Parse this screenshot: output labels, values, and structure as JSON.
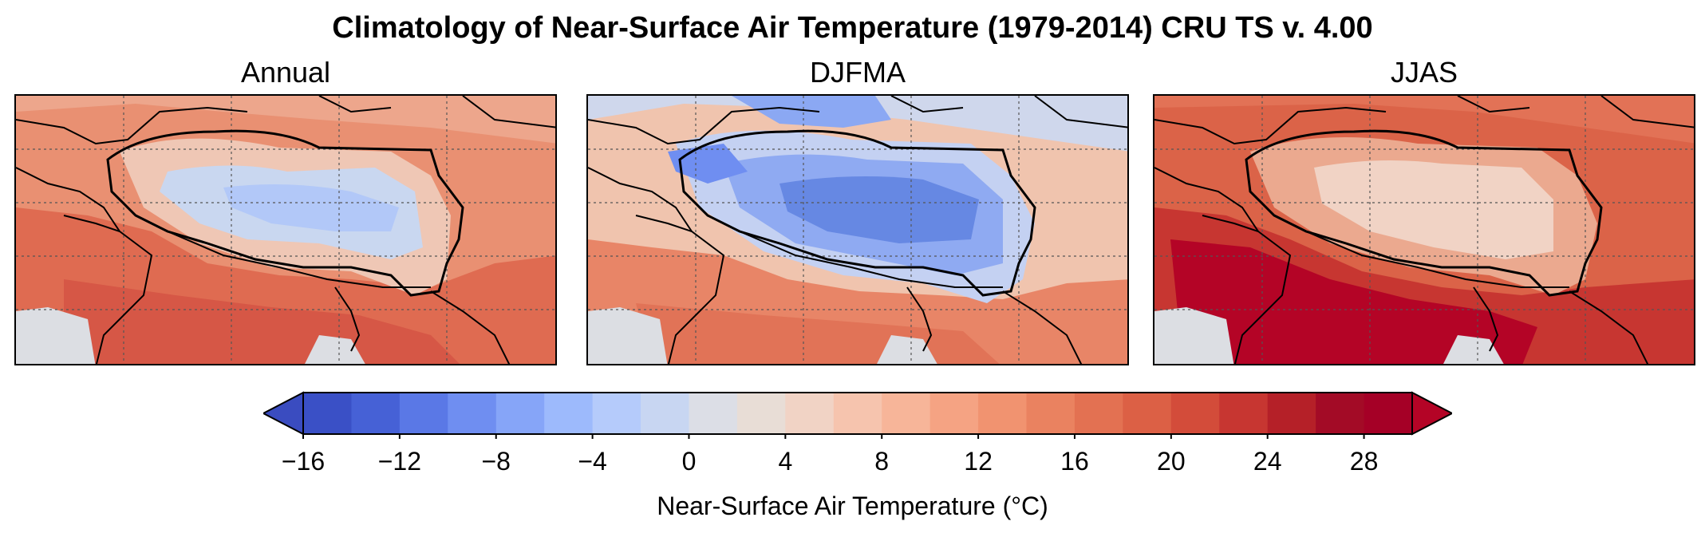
{
  "title": "Climatology of Near-Surface Air Temperature (1979-2014) CRU TS v. 4.00",
  "panels": [
    {
      "label": "Annual"
    },
    {
      "label": "DJFMA"
    },
    {
      "label": "JJAS"
    }
  ],
  "colorbar": {
    "label": "Near-Surface Air Temperature (°C)",
    "ticks": [
      "−16",
      "−12",
      "−8",
      "−4",
      "0",
      "4",
      "8",
      "12",
      "16",
      "20",
      "24",
      "28"
    ],
    "tick_values": [
      -16,
      -12,
      -8,
      -4,
      0,
      4,
      8,
      12,
      16,
      20,
      24,
      28
    ],
    "min": -16,
    "max": 30,
    "step": 2,
    "extend": "both",
    "colors": [
      "#3a50c6",
      "#4661d6",
      "#5a78e6",
      "#6f8ef1",
      "#86a5f8",
      "#9dbafc",
      "#b5cbfb",
      "#c8d6f2",
      "#dcdee6",
      "#e8ddd6",
      "#f1d3c5",
      "#f6c4ae",
      "#f7b599",
      "#f5a383",
      "#f19370",
      "#ea8260",
      "#e37152",
      "#dc6045",
      "#d34c3a",
      "#c73631",
      "#b52028",
      "#a30b26",
      "#a50026"
    ],
    "under_color": "#3a4cc0",
    "over_color": "#b40426"
  },
  "land_mask_color": "#dcdee3"
}
